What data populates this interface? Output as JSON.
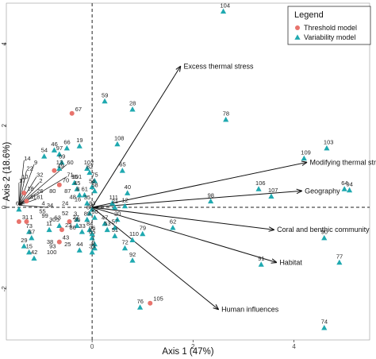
{
  "chart_data": {
    "type": "scatter",
    "xlabel": "Axis 1 (47%)",
    "ylabel": "Axis 2 (18.6%)",
    "xlim": [
      -1.7,
      5.5
    ],
    "ylim": [
      -3.25,
      5.0
    ],
    "x_ticks": [
      0,
      2,
      4
    ],
    "y_ticks": [
      -2,
      0,
      2,
      4
    ],
    "x_tick_labels": [
      "0",
      "2",
      "4"
    ],
    "y_tick_labels": [
      "-2",
      "0",
      "2",
      "4"
    ],
    "grid": false,
    "reference_lines": "dashed lines at x=0 and y=0",
    "legend": {
      "title": "Legend",
      "position": "top-right",
      "entries": [
        {
          "label": "Threshold model",
          "marker": "circle",
          "color": "#e8736c"
        },
        {
          "label": "Variability model",
          "marker": "triangle",
          "color": "#1fa9b0"
        }
      ]
    },
    "vectors": [
      {
        "label": "Excess thermal stress",
        "x": 1.75,
        "y": 3.45
      },
      {
        "label": "Modifying thermal stress",
        "x": 4.25,
        "y": 1.1
      },
      {
        "label": "Geography",
        "x": 4.15,
        "y": 0.4
      },
      {
        "label": "Coral and benthic community",
        "x": 3.6,
        "y": -0.55
      },
      {
        "label": "Habitat",
        "x": 3.65,
        "y": -1.35
      },
      {
        "label": "Human influences",
        "x": 2.5,
        "y": -2.5
      }
    ],
    "variability_points": [
      {
        "label": "104",
        "x": 2.6,
        "y": 4.8
      },
      {
        "label": "59",
        "x": 0.25,
        "y": 2.6
      },
      {
        "label": "28",
        "x": 0.8,
        "y": 2.4
      },
      {
        "label": "78",
        "x": 2.65,
        "y": 2.15
      },
      {
        "label": "108",
        "x": 0.5,
        "y": 1.55
      },
      {
        "label": "103",
        "x": 4.65,
        "y": 1.45
      },
      {
        "label": "109",
        "x": 4.2,
        "y": 1.2
      },
      {
        "label": "19",
        "x": -0.25,
        "y": 1.5
      },
      {
        "label": "65",
        "x": 0.6,
        "y": 0.9
      },
      {
        "label": "64",
        "x": 5.0,
        "y": 0.45
      },
      {
        "label": "94",
        "x": 5.1,
        "y": 0.42
      },
      {
        "label": "106",
        "x": 3.3,
        "y": 0.45
      },
      {
        "label": "107",
        "x": 3.55,
        "y": 0.27
      },
      {
        "label": "40",
        "x": 0.7,
        "y": 0.35
      },
      {
        "label": "98",
        "x": 2.35,
        "y": 0.15
      },
      {
        "label": "12",
        "x": 0.65,
        "y": 0.03
      },
      {
        "label": "90",
        "x": 4.6,
        "y": -0.75
      },
      {
        "label": "77",
        "x": 4.9,
        "y": -1.35
      },
      {
        "label": "91",
        "x": 3.35,
        "y": -1.4
      },
      {
        "label": "92",
        "x": 0.8,
        "y": -1.3
      },
      {
        "label": "76",
        "x": 0.95,
        "y": -2.45
      },
      {
        "label": "74",
        "x": 4.6,
        "y": -2.95
      },
      {
        "label": "62",
        "x": 1.6,
        "y": -0.5
      },
      {
        "label": "79",
        "x": 1.0,
        "y": -0.65
      },
      {
        "label": "110",
        "x": 0.8,
        "y": -0.8
      },
      {
        "label": "72",
        "x": 0.65,
        "y": -1.0
      },
      {
        "label": "46",
        "x": -0.75,
        "y": 1.4
      },
      {
        "label": "66",
        "x": -0.5,
        "y": 1.45
      },
      {
        "label": "97",
        "x": -0.65,
        "y": 1.3
      },
      {
        "label": "54",
        "x": -0.95,
        "y": 1.25
      },
      {
        "label": "69",
        "x": -0.6,
        "y": 1.1
      },
      {
        "label": "13",
        "x": -0.65,
        "y": 0.95
      },
      {
        "label": "82",
        "x": -0.05,
        "y": 0.85
      },
      {
        "label": "102",
        "x": -0.1,
        "y": 0.95
      },
      {
        "label": "75",
        "x": 0.05,
        "y": 0.65
      },
      {
        "label": "56",
        "x": 0.0,
        "y": 0.5
      },
      {
        "label": "58",
        "x": 0.05,
        "y": 0.4
      },
      {
        "label": "61",
        "x": -0.15,
        "y": 0.3
      },
      {
        "label": "111",
        "x": 0.4,
        "y": 0.1
      },
      {
        "label": "21",
        "x": 0.45,
        "y": 0.0
      },
      {
        "label": "20",
        "x": 0.5,
        "y": -0.3
      },
      {
        "label": "57",
        "x": 0.45,
        "y": -0.5
      },
      {
        "label": "53",
        "x": 0.3,
        "y": -0.55
      },
      {
        "label": "51",
        "x": 0.45,
        "y": -0.7
      },
      {
        "label": "47",
        "x": 0.25,
        "y": -0.4
      },
      {
        "label": "83",
        "x": 0.0,
        "y": -0.05
      },
      {
        "label": "88",
        "x": -0.05,
        "y": -0.15
      },
      {
        "label": "50",
        "x": 0.05,
        "y": -0.25
      },
      {
        "label": "89",
        "x": -0.1,
        "y": -0.3
      },
      {
        "label": "84",
        "x": -0.05,
        "y": -0.55
      },
      {
        "label": "96",
        "x": 0.0,
        "y": -0.65
      },
      {
        "label": "85",
        "x": 0.0,
        "y": -0.75
      },
      {
        "label": "33",
        "x": -0.2,
        "y": -0.6
      },
      {
        "label": "7",
        "x": 0.05,
        "y": -0.9
      },
      {
        "label": "6",
        "x": 0.05,
        "y": -1.0
      },
      {
        "label": "39",
        "x": 0.0,
        "y": -1.1
      },
      {
        "label": "44",
        "x": -0.25,
        "y": -1.05
      },
      {
        "label": "36",
        "x": -0.3,
        "y": -0.45
      },
      {
        "label": "95",
        "x": -0.35,
        "y": 0.6
      },
      {
        "label": "45",
        "x": -0.3,
        "y": 0.45
      },
      {
        "label": "8",
        "x": -0.25,
        "y": 0.3
      },
      {
        "label": "35",
        "x": -0.1,
        "y": 0.1
      },
      {
        "label": "3",
        "x": -0.3,
        "y": -0.3
      },
      {
        "label": "11",
        "x": -0.85,
        "y": -0.55
      },
      {
        "label": "5",
        "x": -0.65,
        "y": -0.45
      },
      {
        "label": "73",
        "x": -1.25,
        "y": -0.6
      },
      {
        "label": "37",
        "x": -1.2,
        "y": -0.75
      },
      {
        "label": "29",
        "x": -1.35,
        "y": -0.95
      },
      {
        "label": "15",
        "x": -1.25,
        "y": -1.1
      },
      {
        "label": "42",
        "x": -1.15,
        "y": -1.25
      },
      {
        "label": "68",
        "x": -1.45,
        "y": -0.05
      }
    ],
    "threshold_points": [
      {
        "label": "67",
        "x": -0.4,
        "y": 2.3
      },
      {
        "label": "105",
        "x": 1.15,
        "y": -2.35
      },
      {
        "label": "49",
        "x": -0.75,
        "y": 0.9
      },
      {
        "label": "70",
        "x": -0.65,
        "y": 0.55
      },
      {
        "label": "27",
        "x": -0.45,
        "y": -0.35
      },
      {
        "label": "23",
        "x": -0.6,
        "y": -0.55
      },
      {
        "label": "43",
        "x": -0.65,
        "y": -0.85
      },
      {
        "label": "31",
        "x": -1.45,
        "y": -0.35
      },
      {
        "label": "1",
        "x": -1.3,
        "y": -0.35
      },
      {
        "label": "18",
        "x": -1.35,
        "y": 0.35
      },
      {
        "label": "41",
        "x": -1.3,
        "y": 0.15
      }
    ],
    "unmarked_labels": [
      {
        "label": "14",
        "x": -1.35,
        "y": 1.15
      },
      {
        "label": "22",
        "x": -1.3,
        "y": 0.9
      },
      {
        "label": "9",
        "x": -1.15,
        "y": 1.05
      },
      {
        "label": "32",
        "x": -1.1,
        "y": 0.75
      },
      {
        "label": "10",
        "x": -1.4,
        "y": 0.7
      },
      {
        "label": "2",
        "x": -1.05,
        "y": 0.6
      },
      {
        "label": "26",
        "x": -1.1,
        "y": 0.35
      },
      {
        "label": "81",
        "x": -1.1,
        "y": 0.2
      },
      {
        "label": "17",
        "x": -1.45,
        "y": 0.6
      },
      {
        "label": "60",
        "x": -0.5,
        "y": 1.05
      },
      {
        "label": "71",
        "x": -0.5,
        "y": 0.75
      },
      {
        "label": "34",
        "x": -0.9,
        "y": 0.0
      },
      {
        "label": "24",
        "x": -0.6,
        "y": 0.05
      },
      {
        "label": "55",
        "x": -1.05,
        "y": -0.15
      },
      {
        "label": "52",
        "x": -0.6,
        "y": -0.2
      },
      {
        "label": "30",
        "x": -0.85,
        "y": -0.35
      },
      {
        "label": "99",
        "x": -1.0,
        "y": -0.25
      },
      {
        "label": "63",
        "x": -0.75,
        "y": -0.3
      },
      {
        "label": "80",
        "x": -0.85,
        "y": 0.35
      },
      {
        "label": "48",
        "x": -0.45,
        "y": 0.2
      },
      {
        "label": "16",
        "x": -0.35,
        "y": 0.15
      },
      {
        "label": "87",
        "x": -0.55,
        "y": 0.35
      },
      {
        "label": "101",
        "x": -0.4,
        "y": 0.7
      },
      {
        "label": "4",
        "x": -1.0,
        "y": 0.05
      },
      {
        "label": "86",
        "x": -0.45,
        "y": -0.55
      },
      {
        "label": "38",
        "x": -0.9,
        "y": -0.9
      },
      {
        "label": "93",
        "x": -0.85,
        "y": -1.0
      },
      {
        "label": "25",
        "x": -0.55,
        "y": -0.95
      },
      {
        "label": "100",
        "x": -0.9,
        "y": -1.15
      }
    ]
  }
}
